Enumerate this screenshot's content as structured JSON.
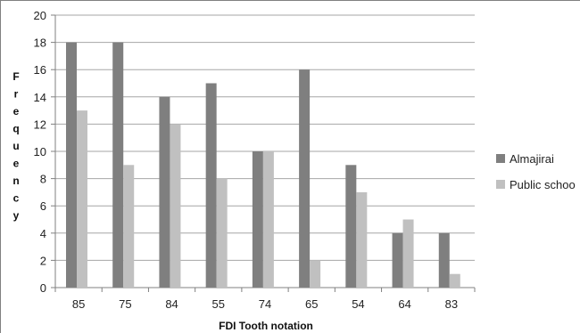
{
  "chart_data": {
    "type": "bar",
    "categories": [
      "85",
      "75",
      "84",
      "55",
      "74",
      "65",
      "54",
      "64",
      "83"
    ],
    "series": [
      {
        "name": "Almajirai",
        "values": [
          18,
          18,
          14,
          15,
          10,
          16,
          9,
          4,
          4
        ],
        "color": "#7f7f7f"
      },
      {
        "name": "Public schoo",
        "values": [
          13,
          9,
          12,
          8,
          10,
          2,
          7,
          5,
          1
        ],
        "color": "#c0c0c0"
      }
    ],
    "xlabel": "FDI Tooth notation",
    "ylabel": "Frequency",
    "ylim": [
      0,
      20
    ],
    "yticks": [
      0,
      2,
      4,
      6,
      8,
      10,
      12,
      14,
      16,
      18,
      20
    ],
    "grid": true,
    "legend_position": "right"
  }
}
